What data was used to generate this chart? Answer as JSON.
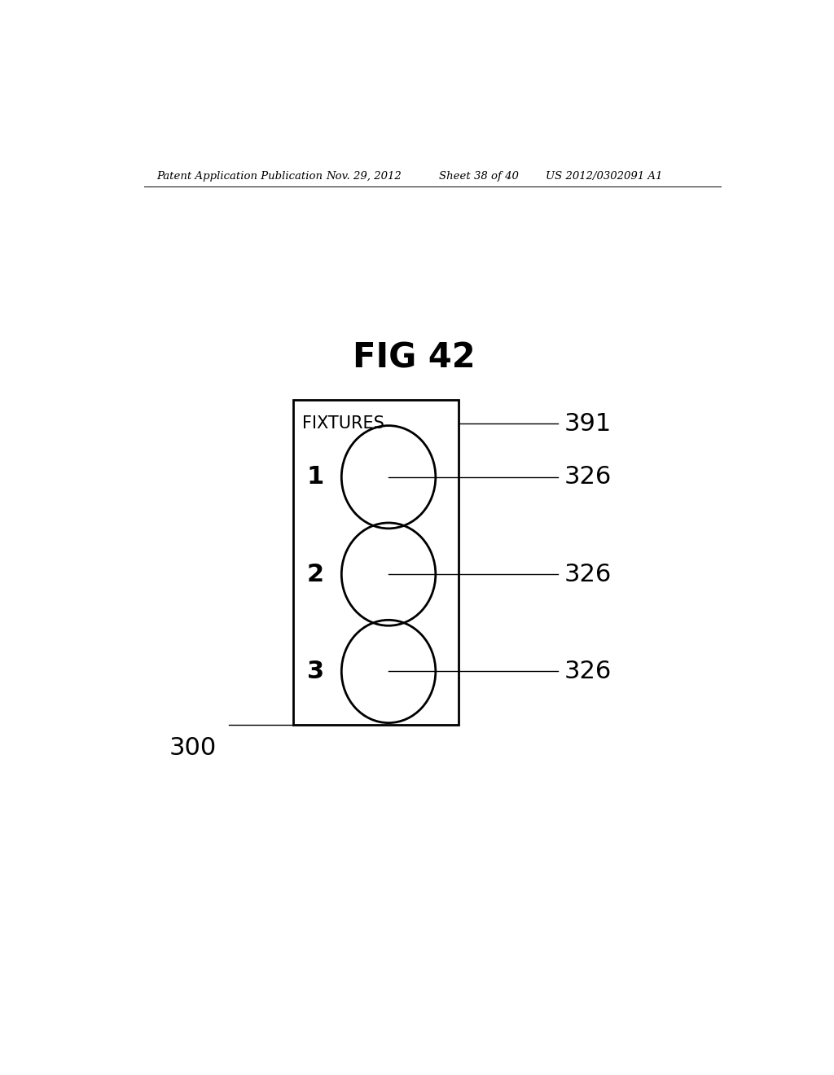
{
  "fig_title": "FIG 42",
  "header_text": "Patent Application Publication",
  "header_date": "Nov. 29, 2012",
  "header_sheet": "Sheet 38 of 40",
  "header_patent": "US 2012/0302091 A1",
  "box_label": "FIXTURES",
  "box_ref": "391",
  "fixture_labels": [
    "1",
    "2",
    "3"
  ],
  "fixture_ref": "326",
  "box_ref_300": "300",
  "bg_color": "#ffffff",
  "line_color": "#000000",
  "text_color": "#000000"
}
